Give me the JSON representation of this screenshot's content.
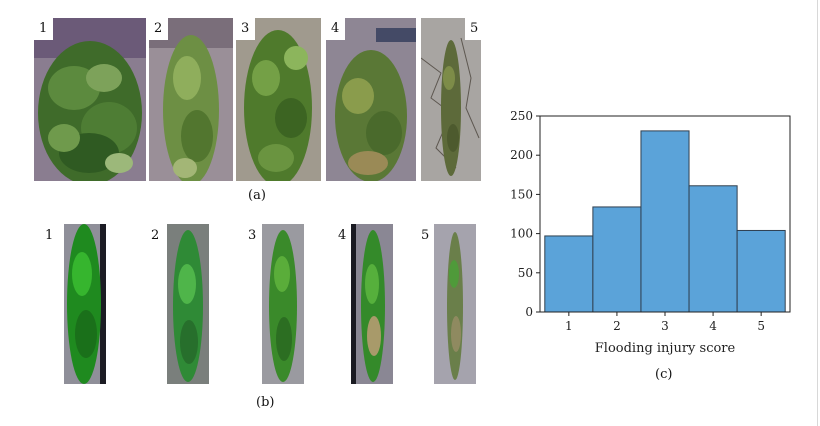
{
  "panel_a": {
    "caption": "(a)",
    "photos": [
      {
        "label": "1"
      },
      {
        "label": "2"
      },
      {
        "label": "3"
      },
      {
        "label": "4"
      },
      {
        "label": "5"
      }
    ]
  },
  "panel_b": {
    "caption": "(b)",
    "strips": [
      {
        "label": "1"
      },
      {
        "label": "2"
      },
      {
        "label": "3"
      },
      {
        "label": "4"
      },
      {
        "label": "5"
      }
    ]
  },
  "panel_c": {
    "caption": "(c)"
  },
  "colors": {
    "bar_fill": "#5ba3d9",
    "bar_stroke": "#2f3f4f",
    "axis": "#222222"
  },
  "chart_data": {
    "type": "bar",
    "categories": [
      "1",
      "2",
      "3",
      "4",
      "5"
    ],
    "values": [
      97,
      134,
      231,
      161,
      104
    ],
    "title": "",
    "xlabel": "Flooding injury score",
    "ylabel": "",
    "ylim": [
      0,
      250
    ],
    "yticks": [
      "0",
      "50",
      "100",
      "150",
      "200",
      "250"
    ],
    "grid": false
  }
}
